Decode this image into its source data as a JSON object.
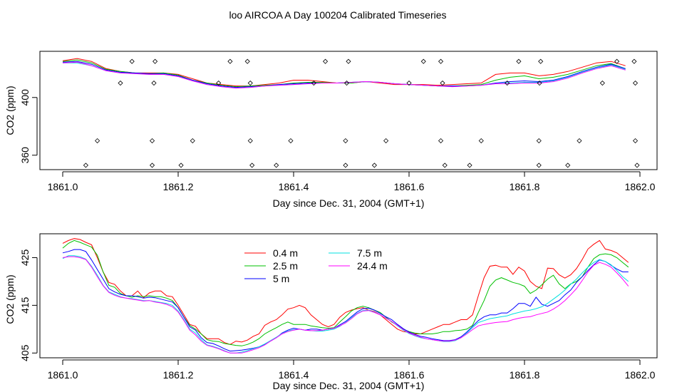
{
  "title": "loo AIRCOA A  Day 100204  Calibrated Timeseries",
  "colors": {
    "0.4 m": "#ff0000",
    "2.5 m": "#00c000",
    "5 m": "#0000ff",
    "7.5 m": "#00e0e0",
    "24.4 m": "#ff00ff"
  },
  "chart_data": [
    {
      "type": "line",
      "xlabel": "Day since Dec. 31, 2004 (GMT+1)",
      "ylabel": "CO2 (ppm)",
      "xlim": [
        1861.0,
        1862.0
      ],
      "ylim": [
        350,
        432
      ],
      "xticks": [
        "1861.0",
        "1861.2",
        "1861.4",
        "1861.6",
        "1861.8",
        "1862.0"
      ],
      "yticks": [
        "360",
        "400"
      ],
      "x": [
        1861.0,
        1861.025,
        1861.05,
        1861.075,
        1861.1,
        1861.125,
        1861.15,
        1861.175,
        1861.2,
        1861.225,
        1861.25,
        1861.275,
        1861.3,
        1861.325,
        1861.35,
        1861.375,
        1861.4,
        1861.425,
        1861.45,
        1861.475,
        1861.5,
        1861.525,
        1861.55,
        1861.575,
        1861.6,
        1861.625,
        1861.65,
        1861.675,
        1861.7,
        1861.725,
        1861.75,
        1861.775,
        1861.8,
        1861.825,
        1861.85,
        1861.875,
        1861.9,
        1861.925,
        1861.95,
        1861.975
      ],
      "series": [
        {
          "name": "0.4 m",
          "values": [
            425.5,
            427,
            425,
            420,
            418,
            417,
            417,
            417,
            416,
            413,
            410,
            409,
            408,
            408,
            409,
            410,
            412,
            412,
            411,
            410,
            410,
            411,
            410,
            409,
            409,
            409,
            408.5,
            409,
            409.5,
            410,
            416,
            417,
            417,
            415,
            416,
            418,
            421,
            424,
            425,
            422
          ]
        },
        {
          "name": "2.5 m",
          "values": [
            425,
            426,
            424,
            419.5,
            418,
            417,
            416.5,
            417,
            415.5,
            412,
            410,
            408.5,
            407.5,
            408,
            408.5,
            409,
            410,
            410.5,
            410.5,
            410,
            410,
            411,
            410.5,
            409.5,
            409,
            408.5,
            408,
            408,
            408.5,
            409,
            412,
            414,
            415,
            413,
            414,
            416,
            419,
            422,
            423.5,
            420
          ]
        },
        {
          "name": "5 m",
          "values": [
            424.5,
            425,
            423,
            419,
            417.5,
            417,
            416.5,
            416.5,
            415,
            412,
            409.5,
            408,
            407,
            407.5,
            408,
            409,
            409.5,
            410,
            410,
            410,
            410.5,
            411,
            410.5,
            409.5,
            409,
            408.5,
            408,
            408,
            408,
            408.5,
            410,
            411,
            411.5,
            411,
            412,
            414.5,
            418,
            421,
            423,
            420
          ]
        },
        {
          "name": "7.5 m",
          "values": [
            424,
            424,
            422,
            418.5,
            417,
            416.5,
            416,
            416,
            414.5,
            411.5,
            409,
            407.5,
            406.5,
            407,
            408,
            408.5,
            409,
            409.5,
            410,
            410,
            410.5,
            411,
            410.5,
            409.5,
            409,
            408.5,
            408,
            407.5,
            408,
            408.5,
            409.5,
            410,
            410.5,
            410.5,
            411.5,
            414,
            417.5,
            420.5,
            422.5,
            419.5
          ]
        },
        {
          "name": "24.4 m",
          "values": [
            424,
            424.5,
            422,
            418.5,
            417,
            416.5,
            416,
            416,
            414.5,
            411.5,
            409,
            407.5,
            406.5,
            407,
            408,
            408.5,
            409,
            409.5,
            410,
            410,
            410.5,
            411,
            410.5,
            409.5,
            409,
            408.5,
            408,
            407.5,
            408,
            408.5,
            409.5,
            409.5,
            410,
            410,
            411,
            413.5,
            417,
            420,
            422,
            419
          ]
        }
      ],
      "points": [
        [
          1861.04,
          353
        ],
        [
          1861.06,
          370
        ],
        [
          1861.1,
          410
        ],
        [
          1861.12,
          425
        ],
        [
          1861.155,
          353
        ],
        [
          1861.155,
          370
        ],
        [
          1861.158,
          410
        ],
        [
          1861.16,
          425
        ],
        [
          1861.205,
          353
        ],
        [
          1861.225,
          370
        ],
        [
          1861.27,
          410
        ],
        [
          1861.29,
          425
        ],
        [
          1861.32,
          425
        ],
        [
          1861.325,
          370
        ],
        [
          1861.325,
          410
        ],
        [
          1861.328,
          353
        ],
        [
          1861.37,
          353
        ],
        [
          1861.395,
          370
        ],
        [
          1861.435,
          410
        ],
        [
          1861.455,
          425
        ],
        [
          1861.49,
          353
        ],
        [
          1861.49,
          370
        ],
        [
          1861.492,
          410
        ],
        [
          1861.495,
          425
        ],
        [
          1861.54,
          353
        ],
        [
          1861.56,
          370
        ],
        [
          1861.6,
          410
        ],
        [
          1861.625,
          425
        ],
        [
          1861.655,
          425
        ],
        [
          1861.655,
          370
        ],
        [
          1861.658,
          410
        ],
        [
          1861.662,
          353
        ],
        [
          1861.705,
          353
        ],
        [
          1861.725,
          370
        ],
        [
          1861.77,
          410
        ],
        [
          1861.79,
          425
        ],
        [
          1861.825,
          370
        ],
        [
          1861.825,
          353
        ],
        [
          1861.826,
          410
        ],
        [
          1861.828,
          425
        ],
        [
          1861.875,
          353
        ],
        [
          1861.895,
          370
        ],
        [
          1861.935,
          410
        ],
        [
          1861.96,
          425
        ],
        [
          1861.99,
          425
        ],
        [
          1861.992,
          370
        ],
        [
          1861.992,
          410
        ],
        [
          1861.995,
          353
        ]
      ]
    },
    {
      "type": "line",
      "xlabel": "Day since Dec. 31, 2004 (GMT+1)",
      "ylabel": "CO2 (ppm)",
      "xlim": [
        1861.0,
        1862.0
      ],
      "ylim": [
        404,
        430
      ],
      "xticks": [
        "1861.0",
        "1861.2",
        "1861.4",
        "1861.6",
        "1861.8",
        "1862.0"
      ],
      "yticks": [
        "405",
        "415",
        "425"
      ],
      "legend": {
        "placement": "top-center",
        "entries": [
          "0.4 m",
          "2.5 m",
          "5 m",
          "7.5 m",
          "24.4 m"
        ]
      },
      "x": [
        1861.0,
        1861.01,
        1861.02,
        1861.03,
        1861.04,
        1861.05,
        1861.06,
        1861.07,
        1861.08,
        1861.09,
        1861.1,
        1861.11,
        1861.12,
        1861.13,
        1861.14,
        1861.15,
        1861.16,
        1861.17,
        1861.18,
        1861.19,
        1861.2,
        1861.21,
        1861.22,
        1861.23,
        1861.24,
        1861.25,
        1861.26,
        1861.27,
        1861.28,
        1861.29,
        1861.3,
        1861.31,
        1861.32,
        1861.33,
        1861.34,
        1861.35,
        1861.36,
        1861.37,
        1861.38,
        1861.39,
        1861.4,
        1861.41,
        1861.42,
        1861.43,
        1861.44,
        1861.45,
        1861.46,
        1861.47,
        1861.48,
        1861.49,
        1861.5,
        1861.51,
        1861.52,
        1861.53,
        1861.54,
        1861.55,
        1861.56,
        1861.57,
        1861.58,
        1861.59,
        1861.6,
        1861.61,
        1861.62,
        1861.63,
        1861.64,
        1861.65,
        1861.66,
        1861.67,
        1861.68,
        1861.69,
        1861.7,
        1861.71,
        1861.72,
        1861.73,
        1861.74,
        1861.75,
        1861.76,
        1861.77,
        1861.78,
        1861.79,
        1861.8,
        1861.81,
        1861.82,
        1861.83,
        1861.84,
        1861.85,
        1861.86,
        1861.87,
        1861.88,
        1861.89,
        1861.9,
        1861.91,
        1861.92,
        1861.93,
        1861.94,
        1861.95,
        1861.96,
        1861.97,
        1861.98
      ],
      "series": [
        {
          "name": "0.4 m",
          "values": [
            428,
            428.6,
            429,
            428.8,
            428.2,
            427.7,
            425,
            422,
            419.8,
            419.4,
            418,
            417,
            417,
            418,
            416.6,
            417.6,
            418,
            418,
            417,
            416.8,
            415,
            413,
            411,
            410.6,
            409,
            408,
            408,
            408,
            407.2,
            406.8,
            407.5,
            407.3,
            407.7,
            408.5,
            409,
            410.8,
            411.5,
            412,
            413,
            414.2,
            414.5,
            415,
            414.5,
            413,
            412,
            411,
            410.5,
            411,
            412.5,
            413.5,
            414,
            414.3,
            414.5,
            414,
            413.7,
            413,
            412,
            411,
            410,
            409.5,
            409.3,
            409,
            409,
            409.5,
            410,
            410.5,
            411,
            411,
            411.5,
            412,
            412,
            413,
            417,
            420.8,
            423.2,
            423.4,
            423,
            423,
            421.5,
            423,
            422.2,
            420,
            419,
            418.5,
            422.8,
            422.7,
            421.4,
            420.7,
            421.4,
            422.7,
            424.6,
            426.8,
            427.8,
            428.6,
            426.8,
            426.5,
            426,
            425,
            424
          ]
        },
        {
          "name": "2.5 m",
          "values": [
            427,
            428,
            428.6,
            428.2,
            427.7,
            427.2,
            425.5,
            422,
            419.2,
            418.8,
            417.5,
            417,
            416.7,
            417,
            416.8,
            417,
            416.8,
            416.8,
            416.5,
            416,
            414.5,
            412.5,
            410.8,
            410,
            409,
            407.8,
            407.5,
            407.4,
            407,
            406.8,
            406.6,
            406.5,
            406.8,
            407.3,
            408,
            409,
            409.7,
            410.3,
            411,
            411.5,
            411,
            411,
            411,
            410.7,
            410.5,
            410.3,
            410.2,
            410.3,
            411.5,
            412.6,
            413.8,
            414.5,
            414.8,
            414.5,
            414,
            413.5,
            412.5,
            411.5,
            410.8,
            410,
            409.5,
            409.2,
            409,
            409,
            409,
            409.2,
            409.5,
            409.5,
            409.7,
            409.8,
            410,
            410.8,
            413.5,
            416,
            419,
            420.3,
            420.8,
            420.3,
            419.8,
            419.5,
            419,
            417.5,
            418.2,
            419.3,
            420.5,
            421.3,
            419.5,
            418.5,
            419.5,
            420,
            421,
            423,
            424.8,
            425.6,
            425.8,
            425.6,
            425,
            424,
            423
          ]
        },
        {
          "name": "5 m",
          "values": [
            426,
            426.3,
            426.7,
            426.7,
            426.3,
            424.5,
            422.5,
            420.5,
            418.5,
            417.8,
            417.3,
            417,
            417,
            416.8,
            416.5,
            416.7,
            416.6,
            416.3,
            416,
            415.7,
            414.5,
            412.5,
            410.5,
            409.8,
            408.2,
            407.2,
            407,
            406.5,
            405.9,
            405.4,
            405.5,
            405.6,
            405.8,
            406,
            406.3,
            406.8,
            407.5,
            408.2,
            409.2,
            409.8,
            410.2,
            410,
            409.8,
            410,
            410,
            409.8,
            410,
            410.2,
            410.9,
            411.6,
            412.6,
            413.6,
            414.3,
            414.4,
            414,
            413.3,
            412.6,
            412,
            411,
            410.1,
            409.4,
            408.9,
            408.5,
            408.3,
            408,
            407.8,
            407.6,
            407.6,
            407.8,
            408.4,
            409.4,
            410.6,
            411.8,
            412.6,
            413,
            413,
            413.4,
            413.4,
            414.3,
            415.4,
            415.4,
            414.8,
            416.7,
            415.2,
            414.8,
            415.4,
            416,
            417.2,
            418.2,
            419.8,
            421,
            422.3,
            423.5,
            424.5,
            424.2,
            423.4,
            422.6,
            422,
            422
          ]
        },
        {
          "name": "7.5 m",
          "values": [
            424.8,
            425.4,
            425.4,
            425.2,
            424.7,
            423.2,
            421.3,
            419.2,
            417.8,
            417.3,
            416.8,
            416.5,
            416.4,
            416.2,
            416,
            416,
            415.8,
            415.6,
            415.4,
            415,
            413.8,
            412,
            410,
            409.2,
            407.8,
            406.7,
            406.4,
            406,
            405.5,
            405,
            405,
            405.2,
            405.5,
            405.9,
            406.3,
            406.9,
            407.6,
            408.3,
            409.1,
            409.6,
            409.9,
            410,
            409.8,
            409.7,
            409.6,
            409.6,
            409.8,
            410,
            410.6,
            411.4,
            412.4,
            413.3,
            413.9,
            414,
            413.6,
            413,
            412.3,
            411.6,
            410.7,
            409.8,
            409.1,
            408.6,
            408.2,
            408,
            407.8,
            407.6,
            407.4,
            407.4,
            407.6,
            408.2,
            409.2,
            410.3,
            411.4,
            411.8,
            412.2,
            412.4,
            412.6,
            412.8,
            413.2,
            413.5,
            413.8,
            414,
            414.3,
            414.7,
            415.4,
            416.3,
            417.2,
            418.2,
            419.4,
            420.5,
            421.8,
            423,
            424,
            424.6,
            424.2,
            423.5,
            422.3,
            421,
            420
          ]
        },
        {
          "name": "24.4 m",
          "values": [
            425,
            425.2,
            425.2,
            425,
            424.6,
            423,
            421,
            419.1,
            417.7,
            417.1,
            416.7,
            416.5,
            416.3,
            416.1,
            415.9,
            416,
            415.7,
            415.5,
            415.2,
            414.7,
            413.6,
            411.8,
            409.8,
            408.8,
            407.5,
            406.6,
            406.3,
            405.9,
            405.4,
            405,
            405,
            405,
            405.3,
            405.7,
            406.1,
            406.7,
            407.5,
            408.2,
            409,
            409.5,
            409.8,
            410,
            409.8,
            409.7,
            409.7,
            409.8,
            410,
            410.2,
            410.7,
            411.3,
            412.2,
            413.2,
            413.8,
            413.9,
            413.5,
            413,
            412.3,
            411.6,
            410.8,
            409.9,
            409.2,
            408.7,
            408.3,
            408,
            407.8,
            407.6,
            407.5,
            407.5,
            407.7,
            408.2,
            409,
            409.9,
            410.7,
            411,
            411.2,
            411.4,
            411.5,
            411.6,
            412,
            412.3,
            412.5,
            412.6,
            413,
            413.3,
            413.6,
            414.2,
            415,
            416,
            417.2,
            418.5,
            420.2,
            422,
            423.4,
            424,
            423.6,
            423,
            421.8,
            420.5,
            419
          ]
        }
      ]
    }
  ]
}
